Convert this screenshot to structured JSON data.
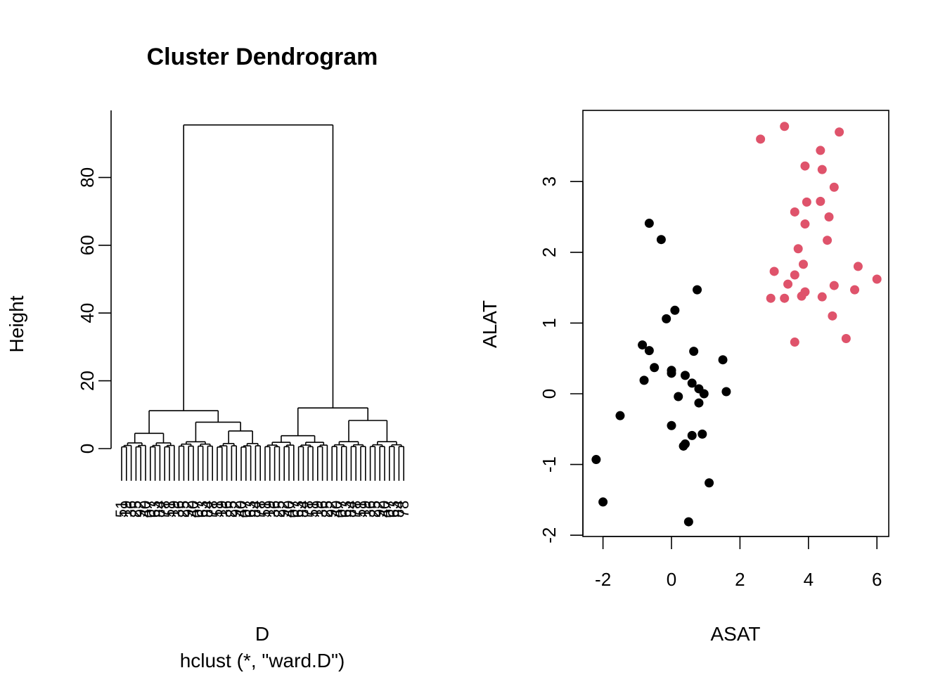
{
  "chart_data": [
    {
      "type": "dendrogram",
      "title": "Cluster Dendrogram",
      "ylabel": "Height",
      "xlabel": "D",
      "sub": "hclust (*, \"ward.D\")",
      "yticks": [
        0,
        20,
        40,
        60,
        80
      ],
      "ylim": [
        -10,
        100
      ],
      "leaf_count": 60,
      "merges": [
        {
          "from": 0,
          "to": 59,
          "height": 95.5
        },
        {
          "from": 0,
          "to": 29,
          "height": 11.2
        },
        {
          "from": 30,
          "to": 59,
          "height": 12.0
        },
        {
          "from": 0,
          "to": 11,
          "height": 4.5
        },
        {
          "from": 12,
          "to": 29,
          "height": 7.8
        },
        {
          "from": 30,
          "to": 43,
          "height": 3.8
        },
        {
          "from": 44,
          "to": 59,
          "height": 8.3
        },
        {
          "from": 20,
          "to": 29,
          "height": 5.2
        },
        {
          "from": 12,
          "to": 19,
          "height": 2.0
        }
      ]
    },
    {
      "type": "scatter",
      "xlabel": "ASAT",
      "ylabel": "ALAT",
      "xlim": [
        -2.5,
        6.0
      ],
      "ylim": [
        -2.0,
        4.0
      ],
      "xticks": [
        -2,
        0,
        2,
        4,
        6
      ],
      "yticks": [
        -2,
        -1,
        0,
        1,
        2,
        3
      ],
      "colors": {
        "cluster1": "#000000",
        "cluster2": "#DF536B"
      },
      "series": [
        {
          "color_key": "cluster1",
          "points": [
            [
              -2.2,
              -0.93
            ],
            [
              -2.0,
              -1.53
            ],
            [
              -1.5,
              -0.31
            ],
            [
              -0.85,
              0.69
            ],
            [
              -0.8,
              0.19
            ],
            [
              -0.65,
              0.61
            ],
            [
              -0.5,
              0.37
            ],
            [
              -0.65,
              2.41
            ],
            [
              -0.3,
              2.18
            ],
            [
              -0.15,
              1.06
            ],
            [
              0.0,
              0.33
            ],
            [
              0.0,
              0.29
            ],
            [
              0.0,
              -0.45
            ],
            [
              0.1,
              1.18
            ],
            [
              0.2,
              -0.04
            ],
            [
              0.4,
              0.26
            ],
            [
              0.6,
              0.15
            ],
            [
              0.65,
              0.6
            ],
            [
              0.75,
              1.47
            ],
            [
              0.8,
              -0.13
            ],
            [
              0.8,
              0.07
            ],
            [
              0.95,
              0.0
            ],
            [
              0.35,
              -0.74
            ],
            [
              0.4,
              -0.71
            ],
            [
              0.6,
              -0.59
            ],
            [
              0.9,
              -0.57
            ],
            [
              1.5,
              0.48
            ],
            [
              1.6,
              0.03
            ],
            [
              1.1,
              -1.26
            ],
            [
              0.5,
              -1.81
            ]
          ]
        },
        {
          "color_key": "cluster2",
          "points": [
            [
              2.6,
              3.6
            ],
            [
              3.3,
              3.78
            ],
            [
              2.9,
              1.35
            ],
            [
              3.0,
              1.73
            ],
            [
              3.3,
              1.35
            ],
            [
              3.4,
              1.55
            ],
            [
              3.6,
              2.57
            ],
            [
              3.6,
              1.68
            ],
            [
              3.6,
              0.73
            ],
            [
              3.7,
              2.05
            ],
            [
              3.8,
              1.38
            ],
            [
              3.85,
              1.83
            ],
            [
              3.9,
              3.22
            ],
            [
              3.9,
              2.4
            ],
            [
              3.9,
              1.44
            ],
            [
              3.95,
              2.71
            ],
            [
              4.35,
              3.44
            ],
            [
              4.35,
              2.72
            ],
            [
              4.4,
              3.17
            ],
            [
              4.4,
              1.37
            ],
            [
              4.55,
              2.17
            ],
            [
              4.6,
              2.5
            ],
            [
              4.7,
              1.1
            ],
            [
              4.75,
              2.92
            ],
            [
              4.75,
              1.53
            ],
            [
              4.9,
              3.7
            ],
            [
              5.1,
              0.78
            ],
            [
              5.35,
              1.47
            ],
            [
              5.45,
              1.8
            ],
            [
              6.0,
              1.62
            ]
          ]
        }
      ]
    }
  ]
}
